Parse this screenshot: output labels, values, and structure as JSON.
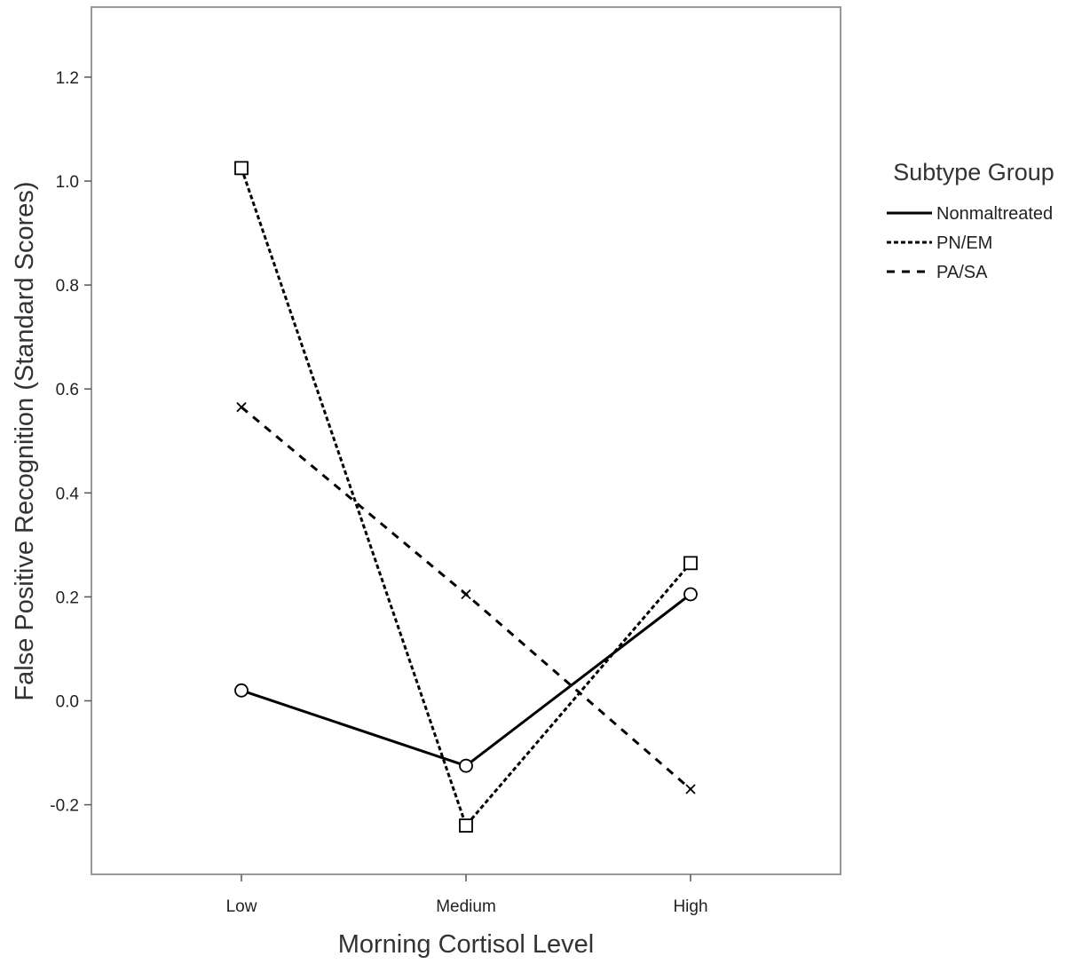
{
  "chart_data": {
    "type": "line",
    "title": "",
    "xlabel": "Morning Cortisol Level",
    "ylabel": "False Positive Recognition (Standard Scores)",
    "categories": [
      "Low",
      "Medium",
      "High"
    ],
    "ylim": [
      -0.34,
      1.34
    ],
    "yticks": [
      -0.2,
      0.0,
      0.2,
      0.4,
      0.6,
      0.8,
      1.0,
      1.2
    ],
    "ytick_labels": [
      "-0.2",
      "0.0",
      "0.2",
      "0.4",
      "0.6",
      "0.8",
      "1.0",
      "1.2"
    ],
    "grid": false,
    "legend": {
      "title": "Subtype Group",
      "position": "right"
    },
    "series": [
      {
        "name": "Nonmaltreated",
        "values": [
          0.02,
          -0.125,
          0.205
        ],
        "marker": "circle",
        "line_style": "solid",
        "color": "#000000"
      },
      {
        "name": "PN/EM",
        "values": [
          1.025,
          -0.24,
          0.265
        ],
        "marker": "square",
        "line_style": "short-dash",
        "color": "#000000"
      },
      {
        "name": "PA/SA",
        "values": [
          0.565,
          0.205,
          -0.17
        ],
        "marker": "x",
        "line_style": "long-dash",
        "color": "#000000"
      }
    ]
  }
}
